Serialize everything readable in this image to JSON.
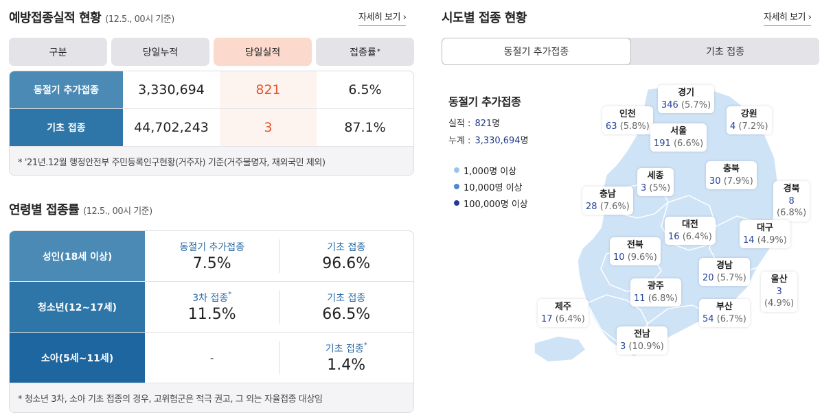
{
  "vaccination": {
    "title": "예방접종실적 현황",
    "subtitle": "(12.5., 00시 기준)",
    "more": "자세히 보기 ›",
    "headers": [
      "구분",
      "당일누적",
      "당일실적",
      "접종률"
    ],
    "rows": [
      {
        "label": "동절기 추가접종",
        "cumulative": "3,330,694",
        "daily": "821",
        "rate": "6.5%",
        "color": "#4a8ab5"
      },
      {
        "label": "기초 접종",
        "cumulative": "44,702,243",
        "daily": "3",
        "rate": "87.1%",
        "color": "#2e75a8"
      }
    ],
    "note": "* '21년.12월 행정안전부 주민등록인구현황(거주자) 기준(거주불명자, 재외국민 제외)"
  },
  "age": {
    "title": "연령별 접종률",
    "subtitle": "(12.5., 00시 기준)",
    "rows": [
      {
        "label": "성인(18세 이상)",
        "color": "#4a8ab5",
        "a_key": "동절기 추가접종",
        "a_sup": "",
        "a_val": "7.5%",
        "b_key": "기초 접종",
        "b_sup": "",
        "b_val": "96.6%"
      },
      {
        "label": "청소년(12~17세)",
        "color": "#2e75a8",
        "a_key": "3차 접종",
        "a_sup": "*",
        "a_val": "11.5%",
        "b_key": "기초 접종",
        "b_sup": "",
        "b_val": "66.5%"
      },
      {
        "label": "소아(5세~11세)",
        "color": "#1d66a0",
        "a_dash": "-",
        "b_key": "기초 접종",
        "b_sup": "*",
        "b_val": "1.4%"
      }
    ],
    "note": "* 청소년 3차, 소아 기초 접종의 경우, 고위험군은 적극 권고, 그 외는 자율접종 대상임"
  },
  "regional": {
    "title": "시도별 접종 현황",
    "more": "자세히 보기 ›",
    "tabs": [
      "동절기 추가접종",
      "기초 접종"
    ],
    "summary_title": "동절기 추가접종",
    "performance_label": "실적 :",
    "performance_value": "821",
    "total_label": "누계 :",
    "total_value": "3,330,694",
    "unit": "명",
    "legend": [
      {
        "label": "1,000명 이상",
        "color": "#9cc3e8"
      },
      {
        "label": "10,000명 이상",
        "color": "#4f86d6"
      },
      {
        "label": "100,000명 이상",
        "color": "#23389a"
      }
    ],
    "regions": [
      {
        "name": "경기",
        "count": "346",
        "pct": "(5.7%)"
      },
      {
        "name": "인천",
        "count": "63",
        "pct": "(5.8%)"
      },
      {
        "name": "서울",
        "count": "191",
        "pct": "(6.6%)"
      },
      {
        "name": "강원",
        "count": "4",
        "pct": "(7.2%)"
      },
      {
        "name": "세종",
        "count": "3",
        "pct": "(5%)"
      },
      {
        "name": "충북",
        "count": "30",
        "pct": "(7.9%)"
      },
      {
        "name": "충남",
        "count": "28",
        "pct": "(7.6%)"
      },
      {
        "name": "경북",
        "count": "8",
        "pct": "(6.8%)"
      },
      {
        "name": "대전",
        "count": "16",
        "pct": "(6.4%)"
      },
      {
        "name": "대구",
        "count": "14",
        "pct": "(4.9%)"
      },
      {
        "name": "전북",
        "count": "10",
        "pct": "(9.6%)"
      },
      {
        "name": "경남",
        "count": "20",
        "pct": "(5.7%)"
      },
      {
        "name": "울산",
        "count": "3",
        "pct": "(4.9%)"
      },
      {
        "name": "광주",
        "count": "11",
        "pct": "(6.8%)"
      },
      {
        "name": "제주",
        "count": "17",
        "pct": "(6.4%)"
      },
      {
        "name": "부산",
        "count": "54",
        "pct": "(6.7%)"
      },
      {
        "name": "전남",
        "count": "3",
        "pct": "(10.9%)"
      }
    ]
  }
}
